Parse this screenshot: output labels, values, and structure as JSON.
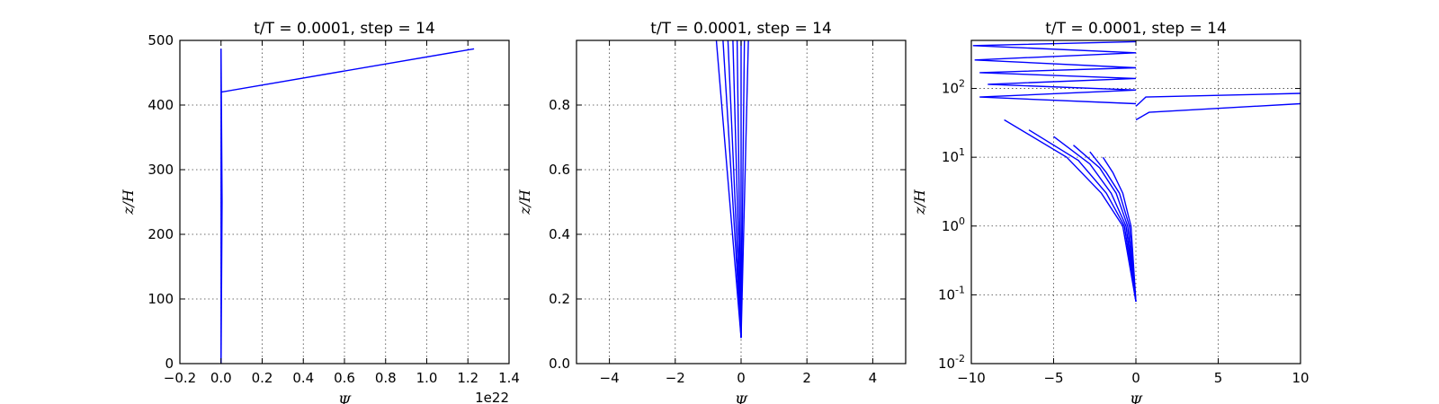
{
  "chart_data": [
    {
      "type": "line",
      "title": "t/T = 0.0001, step = 14",
      "xlabel": "Ψ",
      "ylabel": "z/H",
      "xlim": [
        -0.2,
        1.4
      ],
      "ylim": [
        0,
        500
      ],
      "x_multiplier_label": "1e22",
      "xticks": [
        -0.2,
        0.0,
        0.2,
        0.4,
        0.6,
        0.8,
        1.0,
        1.2,
        1.4
      ],
      "xtick_labels": [
        "−0.2",
        "0.0",
        "0.2",
        "0.4",
        "0.6",
        "0.8",
        "1.0",
        "1.2",
        "1.4"
      ],
      "yticks": [
        0,
        100,
        200,
        300,
        400,
        500
      ],
      "ytick_labels": [
        "0",
        "100",
        "200",
        "300",
        "400",
        "500"
      ],
      "grid": true,
      "yscale": "linear",
      "series": [
        {
          "x": [
            0.0,
            0.0,
            0.0
          ],
          "y": [
            0,
            420,
            487
          ]
        },
        {
          "x": [
            0.0,
            0.005,
            0.0
          ],
          "y": [
            0,
            250,
            487
          ]
        },
        {
          "x": [
            0.0,
            1.23
          ],
          "y": [
            420,
            487
          ]
        }
      ]
    },
    {
      "type": "line",
      "title": "t/T = 0.0001, step = 14",
      "xlabel": "Ψ",
      "ylabel": "z/H",
      "xlim": [
        -5,
        5
      ],
      "ylim": [
        0,
        1
      ],
      "xticks": [
        -4,
        -2,
        0,
        2,
        4
      ],
      "xtick_labels": [
        "−4",
        "−2",
        "0",
        "2",
        "4"
      ],
      "yticks": [
        0.0,
        0.2,
        0.4,
        0.6,
        0.8
      ],
      "ytick_labels": [
        "0.0",
        "0.2",
        "0.4",
        "0.6",
        "0.8"
      ],
      "grid": true,
      "yscale": "linear",
      "series": [
        {
          "x": [
            0,
            -0.75
          ],
          "y": [
            0.08,
            1.0
          ]
        },
        {
          "x": [
            0,
            -0.55
          ],
          "y": [
            0.08,
            1.0
          ]
        },
        {
          "x": [
            0,
            -0.4
          ],
          "y": [
            0.08,
            1.0
          ]
        },
        {
          "x": [
            0,
            -0.25
          ],
          "y": [
            0.08,
            1.0
          ]
        },
        {
          "x": [
            0,
            -0.12
          ],
          "y": [
            0.08,
            1.0
          ]
        },
        {
          "x": [
            0,
            0.0
          ],
          "y": [
            0.08,
            1.0
          ]
        },
        {
          "x": [
            0,
            0.1
          ],
          "y": [
            0.08,
            1.0
          ]
        },
        {
          "x": [
            0,
            0.22
          ],
          "y": [
            0.08,
            1.0
          ]
        }
      ]
    },
    {
      "type": "line",
      "title": "t/T = 0.0001, step = 14",
      "xlabel": "Ψ",
      "ylabel": "z/H",
      "xlim": [
        -10,
        10
      ],
      "ylim": [
        0.01,
        500
      ],
      "xticks": [
        -10,
        -5,
        0,
        5,
        10
      ],
      "xtick_labels": [
        "−10",
        "−5",
        "0",
        "5",
        "10"
      ],
      "yticks": [
        0.01,
        0.1,
        1,
        10,
        100
      ],
      "ytick_labels": [
        [
          "10",
          "-2"
        ],
        [
          "10",
          "-1"
        ],
        [
          "10",
          "0"
        ],
        [
          "10",
          "1"
        ],
        [
          "10",
          "2"
        ]
      ],
      "grid": true,
      "yscale": "log",
      "series": [
        {
          "x": [
            0,
            -0.3,
            -0.8,
            -1.4,
            -2.0
          ],
          "y": [
            0.08,
            1,
            3,
            6,
            10
          ]
        },
        {
          "x": [
            0,
            -0.4,
            -1.0,
            -1.8,
            -2.8
          ],
          "y": [
            0.08,
            1,
            3,
            6,
            12
          ]
        },
        {
          "x": [
            0,
            -0.5,
            -1.2,
            -2.2,
            -3.8
          ],
          "y": [
            0.08,
            1,
            3,
            7,
            15
          ]
        },
        {
          "x": [
            0,
            -0.6,
            -1.5,
            -2.8,
            -5.0
          ],
          "y": [
            0.08,
            1,
            3,
            8,
            20
          ]
        },
        {
          "x": [
            0,
            -0.7,
            -1.8,
            -3.5,
            -6.5
          ],
          "y": [
            0.08,
            1,
            3,
            9,
            25
          ]
        },
        {
          "x": [
            0,
            -0.8,
            -2.1,
            -4.2,
            -8.0
          ],
          "y": [
            0.08,
            1,
            3,
            10,
            35
          ]
        },
        {
          "x": [
            0,
            -9.5,
            0,
            -9.0,
            0,
            -9.5,
            0,
            -9.8,
            0,
            -9.9,
            0
          ],
          "y": [
            60,
            75,
            95,
            115,
            140,
            170,
            200,
            260,
            330,
            420,
            480
          ]
        },
        {
          "x": [
            0,
            0.6,
            10
          ],
          "y": [
            55,
            75,
            85
          ]
        },
        {
          "x": [
            0,
            0.8,
            10
          ],
          "y": [
            35,
            45,
            60
          ]
        }
      ]
    }
  ]
}
